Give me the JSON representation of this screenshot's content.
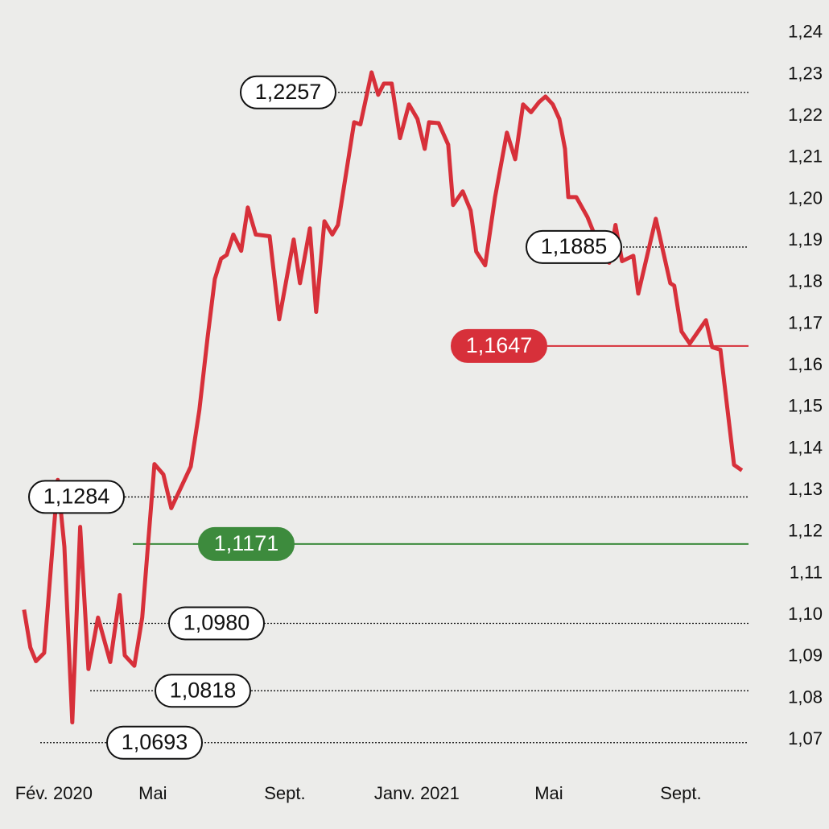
{
  "chart_data": {
    "type": "line",
    "x": [
      -0.9,
      -0.71,
      -0.54,
      -0.29,
      0.12,
      0.32,
      0.56,
      0.8,
      1.05,
      1.34,
      1.71,
      2.0,
      2.15,
      2.44,
      2.68,
      3.05,
      3.32,
      3.56,
      4.15,
      4.41,
      4.66,
      4.88,
      5.07,
      5.24,
      5.44,
      5.68,
      5.88,
      6.12,
      6.54,
      6.83,
      7.27,
      7.46,
      7.76,
      7.95,
      8.2,
      8.44,
      8.61,
      9.1,
      9.29,
      9.63,
      9.83,
      10.0,
      10.24,
      10.49,
      10.76,
      11.02,
      11.24,
      11.37,
      11.66,
      11.95,
      12.1,
      12.39,
      12.63,
      12.8,
      13.07,
      13.37,
      13.73,
      13.98,
      14.22,
      14.46,
      14.71,
      14.9,
      15.12,
      15.32,
      15.49,
      15.59,
      15.83,
      16.17,
      16.54,
      16.83,
      17.02,
      17.22,
      17.56,
      17.71,
      18.24,
      18.68,
      18.8,
      19.02,
      19.27,
      19.76,
      19.95,
      20.2,
      20.61,
      20.85
    ],
    "series": [
      {
        "color": "#d7303a",
        "values": [
          1.1013,
          1.0922,
          1.0889,
          1.0909,
          1.1325,
          1.1164,
          1.0742,
          1.1212,
          1.087,
          1.0994,
          1.0887,
          1.1048,
          1.0903,
          1.0878,
          1.0994,
          1.1363,
          1.1338,
          1.1257,
          1.1357,
          1.1493,
          1.1667,
          1.1808,
          1.1857,
          1.1866,
          1.1915,
          1.1876,
          1.198,
          1.1915,
          1.1911,
          1.1711,
          1.1903,
          1.1798,
          1.193,
          1.1729,
          1.1947,
          1.1915,
          1.1938,
          1.2185,
          1.218,
          1.2305,
          1.2251,
          1.2278,
          1.2278,
          1.2147,
          1.2228,
          1.2193,
          1.2121,
          1.2185,
          1.2183,
          1.2131,
          1.1986,
          1.2019,
          1.1973,
          1.1874,
          1.1841,
          1.2005,
          1.216,
          1.2096,
          1.2228,
          1.2209,
          1.2234,
          1.2247,
          1.2228,
          1.2193,
          1.2121,
          1.2005,
          1.2005,
          1.1957,
          1.1884,
          1.1847,
          1.1938,
          1.1851,
          1.1864,
          1.1773,
          1.1953,
          1.1798,
          1.1792,
          1.1682,
          1.1653,
          1.1709,
          1.1644,
          1.1638,
          1.1361,
          1.1348
        ]
      }
    ],
    "xlim": [
      -1.63,
      21.05
    ],
    "xticks": [
      {
        "value": 0,
        "label": "Fév. 2020"
      },
      {
        "value": 3,
        "label": "Mai"
      },
      {
        "value": 7,
        "label": "Sept."
      },
      {
        "value": 11,
        "label": "Janv. 2021"
      },
      {
        "value": 15,
        "label": "Mai"
      },
      {
        "value": 19,
        "label": "Sept."
      }
    ],
    "ylim": [
      1.065,
      1.245
    ],
    "yticks": [
      {
        "value": 1.07,
        "label": "1,07"
      },
      {
        "value": 1.08,
        "label": "1,08"
      },
      {
        "value": 1.09,
        "label": "1,09"
      },
      {
        "value": 1.1,
        "label": "1,10"
      },
      {
        "value": 1.11,
        "label": "1,11"
      },
      {
        "value": 1.12,
        "label": "1,12"
      },
      {
        "value": 1.13,
        "label": "1,13"
      },
      {
        "value": 1.14,
        "label": "1,14"
      },
      {
        "value": 1.15,
        "label": "1,15"
      },
      {
        "value": 1.16,
        "label": "1,16"
      },
      {
        "value": 1.17,
        "label": "1,17"
      },
      {
        "value": 1.18,
        "label": "1,18"
      },
      {
        "value": 1.19,
        "label": "1,19"
      },
      {
        "value": 1.2,
        "label": "1,20"
      },
      {
        "value": 1.21,
        "label": "1,21"
      },
      {
        "value": 1.22,
        "label": "1,22"
      },
      {
        "value": 1.23,
        "label": "1,23"
      },
      {
        "value": 1.24,
        "label": "1,24"
      }
    ],
    "reference_lines": [
      {
        "value": 1.2257,
        "label": "1,2257",
        "style": "dotted"
      },
      {
        "value": 1.1885,
        "label": "1,1885",
        "style": "dotted"
      },
      {
        "value": 1.1647,
        "label": "1,1647",
        "style": "solid",
        "color": "#d7303a"
      },
      {
        "value": 1.1284,
        "label": "1,1284",
        "style": "dotted"
      },
      {
        "value": 1.1171,
        "label": "1,1171",
        "style": "solid",
        "color": "#3d8b3d"
      },
      {
        "value": 1.098,
        "label": "1,0980",
        "style": "dotted"
      },
      {
        "value": 1.0818,
        "label": "1,0818",
        "style": "dotted"
      },
      {
        "value": 1.0693,
        "label": "1,0693",
        "style": "dotted"
      }
    ]
  }
}
